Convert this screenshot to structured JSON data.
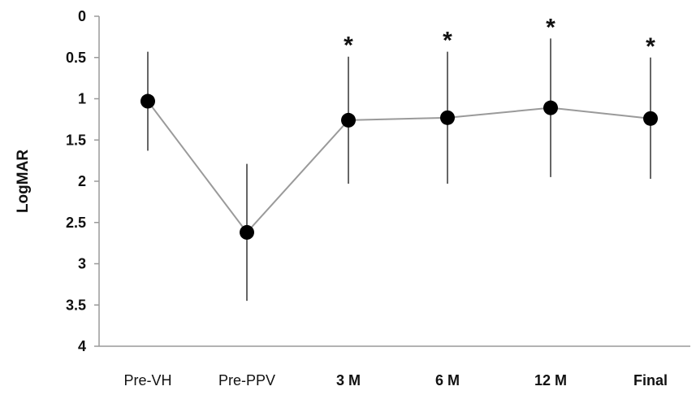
{
  "chart_data": {
    "type": "line",
    "title": "",
    "xlabel": "",
    "ylabel": "LogMAR",
    "ylim": [
      0,
      4
    ],
    "y_inverted": true,
    "y_ticks": [
      "0",
      "0.5",
      "1",
      "1.5",
      "2",
      "2.5",
      "3",
      "3.5",
      "4"
    ],
    "categories": [
      "Pre-VH",
      "Pre-PPV",
      "3 M",
      "6 M",
      "12 M",
      "Final"
    ],
    "bold_categories": [
      false,
      false,
      true,
      true,
      true,
      true
    ],
    "series": [
      {
        "values": [
          1.03,
          2.62,
          1.26,
          1.23,
          1.11,
          1.24
        ],
        "error_low": [
          0.43,
          1.79,
          0.49,
          0.43,
          0.27,
          0.5
        ],
        "error_high": [
          1.63,
          3.45,
          2.03,
          2.03,
          1.95,
          1.97
        ],
        "significance": [
          "",
          "",
          "*",
          "*",
          "*",
          "*"
        ]
      }
    ],
    "grid": false,
    "legend": "none",
    "colors": {
      "line": "#9a9a9a",
      "marker": "#000000",
      "error_bar": "#555555",
      "axis": "#9a9a9a"
    }
  }
}
